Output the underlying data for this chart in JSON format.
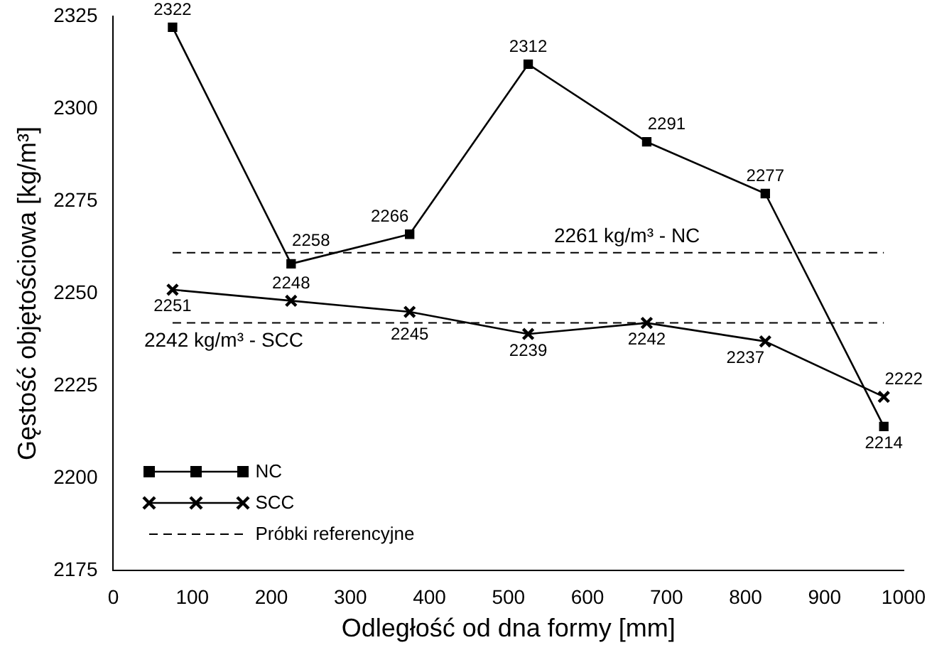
{
  "chart_data": {
    "type": "line",
    "xlabel": "Odległość od dna formy [mm]",
    "ylabel": "Gęstość objętościowa [kg/m³]",
    "x": [
      75,
      225,
      375,
      525,
      675,
      825,
      975
    ],
    "series": [
      {
        "name": "NC",
        "color": "#000000",
        "marker": "square",
        "values": [
          2322,
          2258,
          2266,
          2312,
          2291,
          2277,
          2214
        ]
      },
      {
        "name": "SCC",
        "color": "#000000",
        "marker": "cross",
        "values": [
          2251,
          2248,
          2245,
          2239,
          2242,
          2237,
          2222
        ]
      }
    ],
    "ref_lines": [
      {
        "axis": "y",
        "value": 2261,
        "label": "2261 kg/m³ - NC",
        "color": "#000000",
        "line_style": "dashed"
      },
      {
        "axis": "y",
        "value": 2242,
        "label": "2242 kg/m³ - SCC",
        "color": "#000000",
        "line_style": "dashed"
      }
    ],
    "annotations": [
      "Próbki referencyjne"
    ],
    "xlim": [
      0,
      1000
    ],
    "xticks": [
      0,
      100,
      200,
      300,
      400,
      500,
      600,
      700,
      800,
      900,
      1000
    ],
    "ylim": [
      2175,
      2325
    ],
    "yticks": [
      2175,
      2200,
      2225,
      2250,
      2275,
      2300,
      2325
    ],
    "grid": false,
    "legend": "bottom left",
    "data_labels": true,
    "line_style": "solid"
  }
}
